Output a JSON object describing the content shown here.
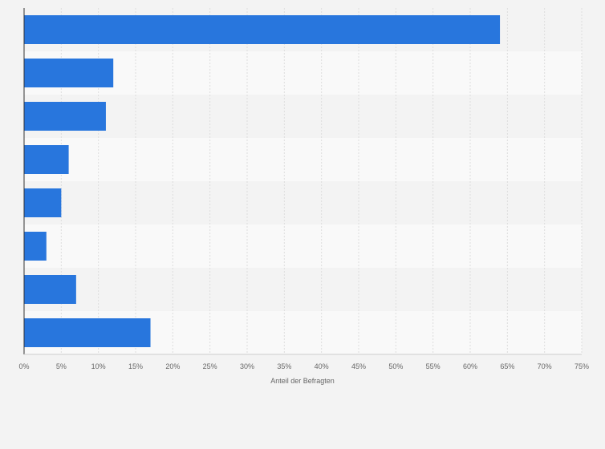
{
  "chart_data": {
    "type": "bar",
    "orientation": "horizontal",
    "categories": [
      "",
      "",
      "",
      "",
      "",
      "",
      "",
      ""
    ],
    "values": [
      64,
      12,
      11,
      6,
      5,
      3,
      7,
      17
    ],
    "xlabel": "Anteil der Befragten",
    "ylabel": "",
    "xlim": [
      0,
      75
    ],
    "ticks": [
      "0%",
      "5%",
      "10%",
      "15%",
      "20%",
      "25%",
      "30%",
      "35%",
      "40%",
      "45%",
      "50%",
      "55%",
      "60%",
      "65%",
      "70%",
      "75%"
    ],
    "grid": true,
    "legend": "none",
    "bar_color": "#2876dd"
  }
}
